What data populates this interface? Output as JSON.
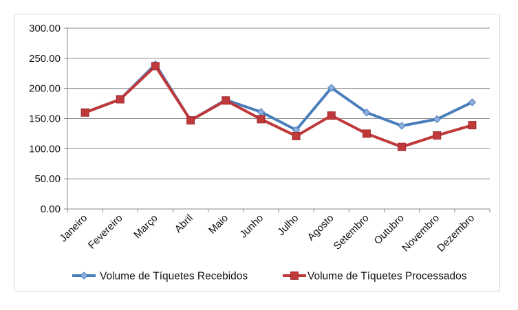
{
  "chart_data": {
    "type": "line",
    "title": "",
    "xlabel": "",
    "ylabel": "",
    "categories": [
      "Janeiro",
      "Fevereiro",
      "Março",
      "Abril",
      "Maio",
      "Junho",
      "Julho",
      "Agosto",
      "Setembro",
      "Outubro",
      "Novembro",
      "Dezembro"
    ],
    "ylim": [
      0,
      300
    ],
    "yticks": [
      "0.00",
      "50.00",
      "100.00",
      "150.00",
      "200.00",
      "250.00",
      "300.00"
    ],
    "grid": true,
    "legend_position": "bottom",
    "series": [
      {
        "name": "Volume de Tíquetes Recebidos",
        "color": "#4a7ebb",
        "marker": "diamond",
        "values": [
          160,
          182,
          240,
          147,
          181,
          161,
          131,
          201,
          160,
          138,
          149,
          177
        ]
      },
      {
        "name": "Volume de Tíquetes Processados",
        "color": "#c0393b",
        "marker": "square",
        "values": [
          160,
          182,
          237,
          147,
          180,
          149,
          121,
          155,
          125,
          103,
          122,
          139
        ]
      }
    ]
  }
}
